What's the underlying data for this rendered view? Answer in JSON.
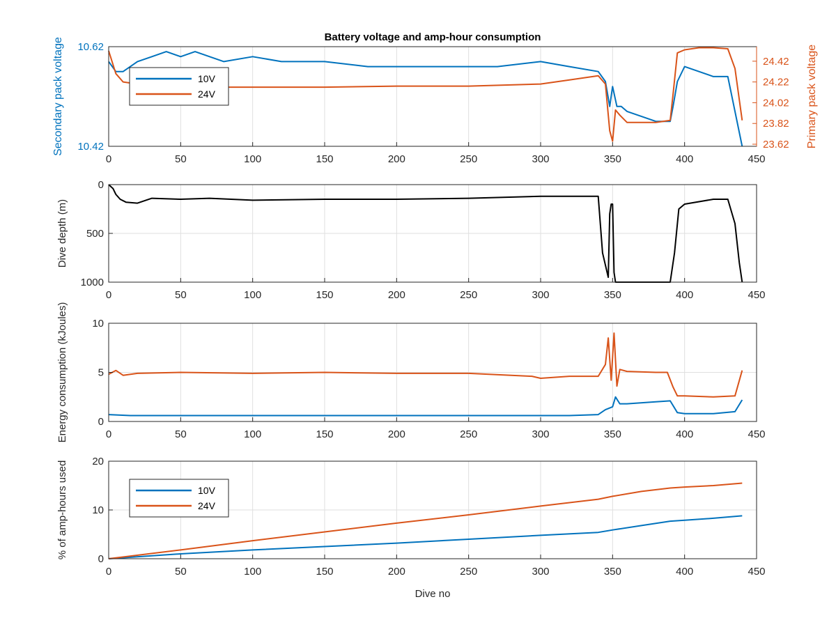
{
  "figure": {
    "title": "Battery voltage and amp-hour consumption",
    "colors": {
      "blue": "#0072BD",
      "orange": "#D95319",
      "black": "#000000"
    }
  },
  "chart_data": [
    {
      "id": "voltage",
      "type": "line",
      "title": "Battery voltage and amp-hour consumption",
      "xlabel": "",
      "ylabel": "Secondary pack voltage",
      "ylabel_right": "Primary pack voltage",
      "xlim": [
        0,
        450
      ],
      "ylim": [
        10.42,
        10.62
      ],
      "ylim_right": [
        23.6,
        24.56
      ],
      "xticks": [
        0,
        50,
        100,
        150,
        200,
        250,
        300,
        350,
        400,
        450
      ],
      "yticks": [
        10.42,
        10.62
      ],
      "yticklabels": [
        "10.42",
        "10.62"
      ],
      "yticks_right": [
        23.62,
        23.82,
        24.02,
        24.22,
        24.42
      ],
      "yticklabels_right": [
        "23.62",
        "23.82",
        "24.02",
        "24.22",
        "24.42"
      ],
      "grid": true,
      "legend": {
        "location": "top-left",
        "entries": [
          "10V",
          "24V"
        ]
      },
      "series": [
        {
          "name": "10V",
          "axis": "left",
          "color": "#0072BD",
          "x": [
            0,
            5,
            10,
            15,
            20,
            30,
            40,
            50,
            60,
            80,
            100,
            120,
            150,
            180,
            200,
            220,
            250,
            270,
            300,
            320,
            340,
            345,
            348,
            350,
            353,
            356,
            360,
            370,
            380,
            390,
            392,
            395,
            400,
            410,
            420,
            430,
            440
          ],
          "y": [
            10.59,
            10.57,
            10.57,
            10.58,
            10.59,
            10.6,
            10.61,
            10.6,
            10.61,
            10.59,
            10.6,
            10.59,
            10.59,
            10.58,
            10.58,
            10.58,
            10.58,
            10.58,
            10.59,
            10.58,
            10.57,
            10.55,
            10.5,
            10.54,
            10.5,
            10.5,
            10.49,
            10.48,
            10.47,
            10.47,
            10.5,
            10.55,
            10.58,
            10.57,
            10.56,
            10.56,
            10.42
          ]
        },
        {
          "name": "24V",
          "axis": "right",
          "color": "#D95319",
          "x": [
            0,
            5,
            10,
            20,
            40,
            60,
            80,
            100,
            150,
            200,
            250,
            300,
            320,
            340,
            345,
            348,
            350,
            352,
            355,
            360,
            380,
            390,
            392,
            395,
            400,
            410,
            420,
            430,
            435,
            440
          ],
          "y": [
            24.52,
            24.3,
            24.22,
            24.2,
            24.18,
            24.18,
            24.17,
            24.17,
            24.17,
            24.18,
            24.18,
            24.2,
            24.24,
            24.28,
            24.2,
            23.75,
            23.65,
            23.95,
            23.9,
            23.83,
            23.83,
            23.85,
            24.1,
            24.5,
            24.53,
            24.55,
            24.55,
            24.54,
            24.35,
            23.85
          ]
        }
      ]
    },
    {
      "id": "depth",
      "type": "line",
      "xlabel": "",
      "ylabel": "Dive depth (m)",
      "xlim": [
        0,
        450
      ],
      "ylim": [
        0,
        1000
      ],
      "y_reversed": true,
      "xticks": [
        0,
        50,
        100,
        150,
        200,
        250,
        300,
        350,
        400,
        450
      ],
      "yticks": [
        0,
        500,
        1000
      ],
      "yticklabels": [
        "0",
        "500",
        "1000"
      ],
      "grid": true,
      "series": [
        {
          "name": "",
          "color": "#000000",
          "x": [
            0,
            3,
            5,
            8,
            12,
            20,
            30,
            50,
            70,
            100,
            150,
            200,
            250,
            300,
            340,
            343,
            347,
            348,
            349,
            350,
            351,
            352,
            353,
            354,
            358,
            370,
            380,
            390,
            393,
            396,
            400,
            420,
            430,
            435,
            438,
            440
          ],
          "y": [
            0,
            40,
            100,
            150,
            180,
            190,
            140,
            150,
            140,
            160,
            150,
            150,
            140,
            120,
            120,
            700,
            950,
            300,
            200,
            200,
            900,
            1000,
            1000,
            1000,
            1000,
            1000,
            1000,
            1000,
            700,
            250,
            200,
            150,
            150,
            400,
            800,
            1000
          ]
        }
      ]
    },
    {
      "id": "energy",
      "type": "line",
      "xlabel": "",
      "ylabel": "Energy consumption (kJoules)",
      "xlim": [
        0,
        450
      ],
      "ylim": [
        0,
        10
      ],
      "xticks": [
        0,
        50,
        100,
        150,
        200,
        250,
        300,
        350,
        400,
        450
      ],
      "yticks": [
        0,
        5,
        10
      ],
      "yticklabels": [
        "0",
        "5",
        "10"
      ],
      "grid": true,
      "series": [
        {
          "name": "24V",
          "color": "#D95319",
          "x": [
            0,
            5,
            10,
            20,
            50,
            100,
            150,
            200,
            250,
            294,
            300,
            320,
            340,
            345,
            347,
            349,
            351,
            353,
            355,
            360,
            380,
            388,
            392,
            395,
            400,
            420,
            435,
            440
          ],
          "y": [
            4.8,
            5.2,
            4.7,
            4.9,
            5,
            4.9,
            5,
            4.9,
            4.9,
            4.6,
            4.4,
            4.6,
            4.6,
            5.8,
            8.5,
            4.2,
            9,
            3.6,
            5.3,
            5.1,
            5,
            5,
            3.5,
            2.6,
            2.6,
            2.5,
            2.6,
            5.2
          ]
        },
        {
          "name": "10V",
          "color": "#0072BD",
          "x": [
            0,
            15,
            20,
            50,
            100,
            150,
            200,
            250,
            294,
            300,
            320,
            340,
            345,
            350,
            352,
            355,
            360,
            380,
            390,
            395,
            400,
            420,
            435,
            440
          ],
          "y": [
            0.7,
            0.6,
            0.6,
            0.6,
            0.6,
            0.6,
            0.6,
            0.6,
            0.6,
            0.6,
            0.6,
            0.7,
            1.2,
            1.5,
            2.5,
            1.8,
            1.8,
            2,
            2.1,
            0.9,
            0.8,
            0.8,
            1,
            2.2
          ]
        }
      ]
    },
    {
      "id": "amphours",
      "type": "line",
      "xlabel": "Dive no",
      "ylabel": "% of amp-hours used",
      "xlim": [
        0,
        450
      ],
      "ylim": [
        0,
        20
      ],
      "xticks": [
        0,
        50,
        100,
        150,
        200,
        250,
        300,
        350,
        400,
        450
      ],
      "yticks": [
        0,
        10,
        20
      ],
      "yticklabels": [
        "0",
        "10",
        "20"
      ],
      "grid": true,
      "legend": {
        "location": "top-left",
        "entries": [
          "10V",
          "24V"
        ]
      },
      "series": [
        {
          "name": "10V",
          "color": "#0072BD",
          "x": [
            0,
            50,
            100,
            150,
            200,
            250,
            300,
            340,
            350,
            370,
            390,
            400,
            420,
            440
          ],
          "y": [
            0,
            1,
            1.8,
            2.5,
            3.2,
            4,
            4.8,
            5.4,
            5.9,
            6.8,
            7.7,
            7.9,
            8.3,
            8.8
          ]
        },
        {
          "name": "24V",
          "color": "#D95319",
          "x": [
            0,
            50,
            100,
            150,
            200,
            250,
            300,
            340,
            350,
            370,
            390,
            400,
            420,
            440
          ],
          "y": [
            0,
            1.8,
            3.7,
            5.5,
            7.3,
            9,
            10.8,
            12.2,
            12.8,
            13.8,
            14.5,
            14.7,
            15,
            15.5
          ]
        }
      ]
    }
  ]
}
